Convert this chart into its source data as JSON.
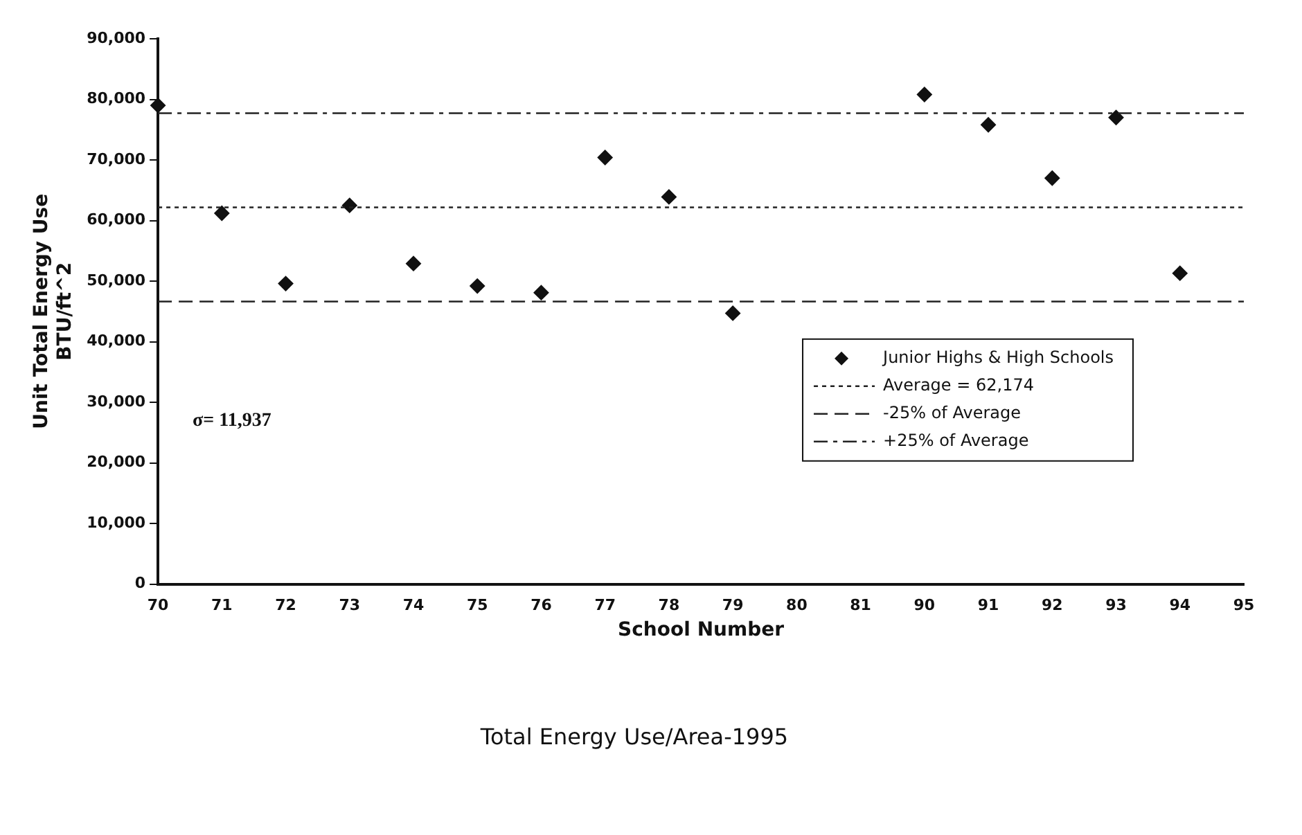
{
  "chart_data": {
    "type": "scatter",
    "title": "Total Energy Use/Area-1995",
    "xlabel": "School Number",
    "ylabel": "Unit Total Energy Use\nBTU/ft^2",
    "categories": [
      "70",
      "71",
      "72",
      "73",
      "74",
      "75",
      "76",
      "77",
      "78",
      "79",
      "80",
      "81",
      "90",
      "91",
      "92",
      "93",
      "94",
      "95"
    ],
    "series": [
      {
        "name": "Junior Highs & High Schools",
        "color": "#111111",
        "values": [
          79000,
          61200,
          49600,
          62500,
          52900,
          49200,
          48100,
          70400,
          63900,
          44700,
          null,
          null,
          80800,
          75800,
          67000,
          77000,
          51300,
          null
        ]
      }
    ],
    "ylim": [
      0,
      90000
    ],
    "yticks": [
      0,
      {
        "value": 10000,
        "label": "10,000"
      },
      {
        "value": 20000,
        "label": "20,000"
      },
      {
        "value": 30000,
        "label": "30,000"
      },
      {
        "value": 40000,
        "label": "40,000"
      },
      {
        "value": 50000,
        "label": "50,000"
      },
      {
        "value": 60000,
        "label": "60,000"
      },
      {
        "value": 70000,
        "label": "70,000"
      },
      {
        "value": 80000,
        "label": "80,000"
      },
      {
        "value": 90000,
        "label": "90,000"
      }
    ],
    "ref_lines": [
      {
        "axis": "y",
        "value": 62174,
        "label": "Average = 62,174",
        "line_style": "dotted",
        "color": "#222222"
      },
      {
        "axis": "y",
        "value": 46630,
        "label": "-25% of Average",
        "line_style": "dashed",
        "color": "#222222"
      },
      {
        "axis": "y",
        "value": 77718,
        "label": "+25% of Average",
        "line_style": "dashdot",
        "color": "#222222"
      }
    ],
    "annotations": [
      "σ= 11,937"
    ],
    "marker": "diamond",
    "grid": false,
    "legend": "right"
  }
}
